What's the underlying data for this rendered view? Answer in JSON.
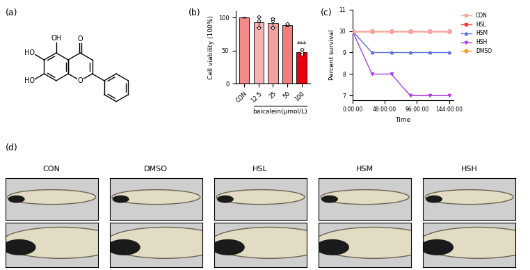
{
  "panel_labels": [
    "(a)",
    "(b)",
    "(c)",
    "(d)"
  ],
  "structure": {
    "atom_labels": [
      "OH",
      "O",
      "HO",
      "HO",
      "O"
    ]
  },
  "chart_data": [
    {
      "type": "bar",
      "categories": [
        "CON",
        "12.5",
        "25",
        "50",
        "100"
      ],
      "values": [
        100,
        93,
        92,
        89,
        48
      ],
      "errors": [
        0,
        8,
        7,
        2,
        4
      ],
      "points": [
        [],
        [
          84,
          95,
          101
        ],
        [
          84,
          95,
          98
        ],
        [
          88,
          90,
          91
        ],
        [
          44,
          48,
          52
        ]
      ],
      "colors": [
        "#f4898a",
        "#f6b3b3",
        "#f4a0a0",
        "#f27d7d",
        "#e8000e"
      ],
      "y_label": "Cell viability (100%)",
      "x_label": "baicalein(μmol/L)",
      "ylim": [
        0,
        110
      ],
      "yticks": [
        0,
        50,
        100
      ],
      "annotations": [
        {
          "text": "***",
          "category": "100"
        }
      ]
    },
    {
      "type": "line",
      "x": [
        0,
        29,
        58,
        86,
        115,
        144
      ],
      "series": [
        {
          "name": "CON",
          "color": "#f4a6a6",
          "marker": "square",
          "line_style": "solid",
          "values": [
            10,
            10,
            10,
            10,
            10,
            10
          ]
        },
        {
          "name": "HSL",
          "color": "#e8413c",
          "marker": "square",
          "line_style": "solid",
          "values": [
            10,
            10,
            10,
            10,
            10,
            10
          ]
        },
        {
          "name": "HSM",
          "color": "#5a6ee0",
          "marker": "triangle",
          "line_style": "solid",
          "values": [
            10,
            9,
            9,
            9,
            9,
            9
          ]
        },
        {
          "name": "HSH",
          "color": "#b03fe0",
          "marker": "triangle_down",
          "line_style": "solid",
          "values": [
            10,
            8,
            8,
            7,
            7,
            7
          ]
        },
        {
          "name": "DMSO",
          "color": "#f0a030",
          "marker": "diamond",
          "line_style": "solid",
          "values": [
            10,
            10,
            10,
            10,
            10,
            10
          ]
        }
      ],
      "x_label": "Time",
      "y_label": "Percent survival",
      "xlim": [
        0,
        150
      ],
      "xticks": [
        {
          "value": 0,
          "label": "0:00:00"
        },
        {
          "value": 48,
          "label": "48:00:00"
        },
        {
          "value": 96,
          "label": "96:00:00"
        },
        {
          "value": 144,
          "label": "144:00:00"
        }
      ],
      "ylim": [
        6.8,
        11
      ],
      "yticks": [
        7,
        8,
        9,
        10,
        11
      ],
      "legend": "upper left"
    }
  ],
  "images": {
    "columns": [
      "CON",
      "DMSO",
      "HSL",
      "HSM",
      "HSH"
    ]
  }
}
